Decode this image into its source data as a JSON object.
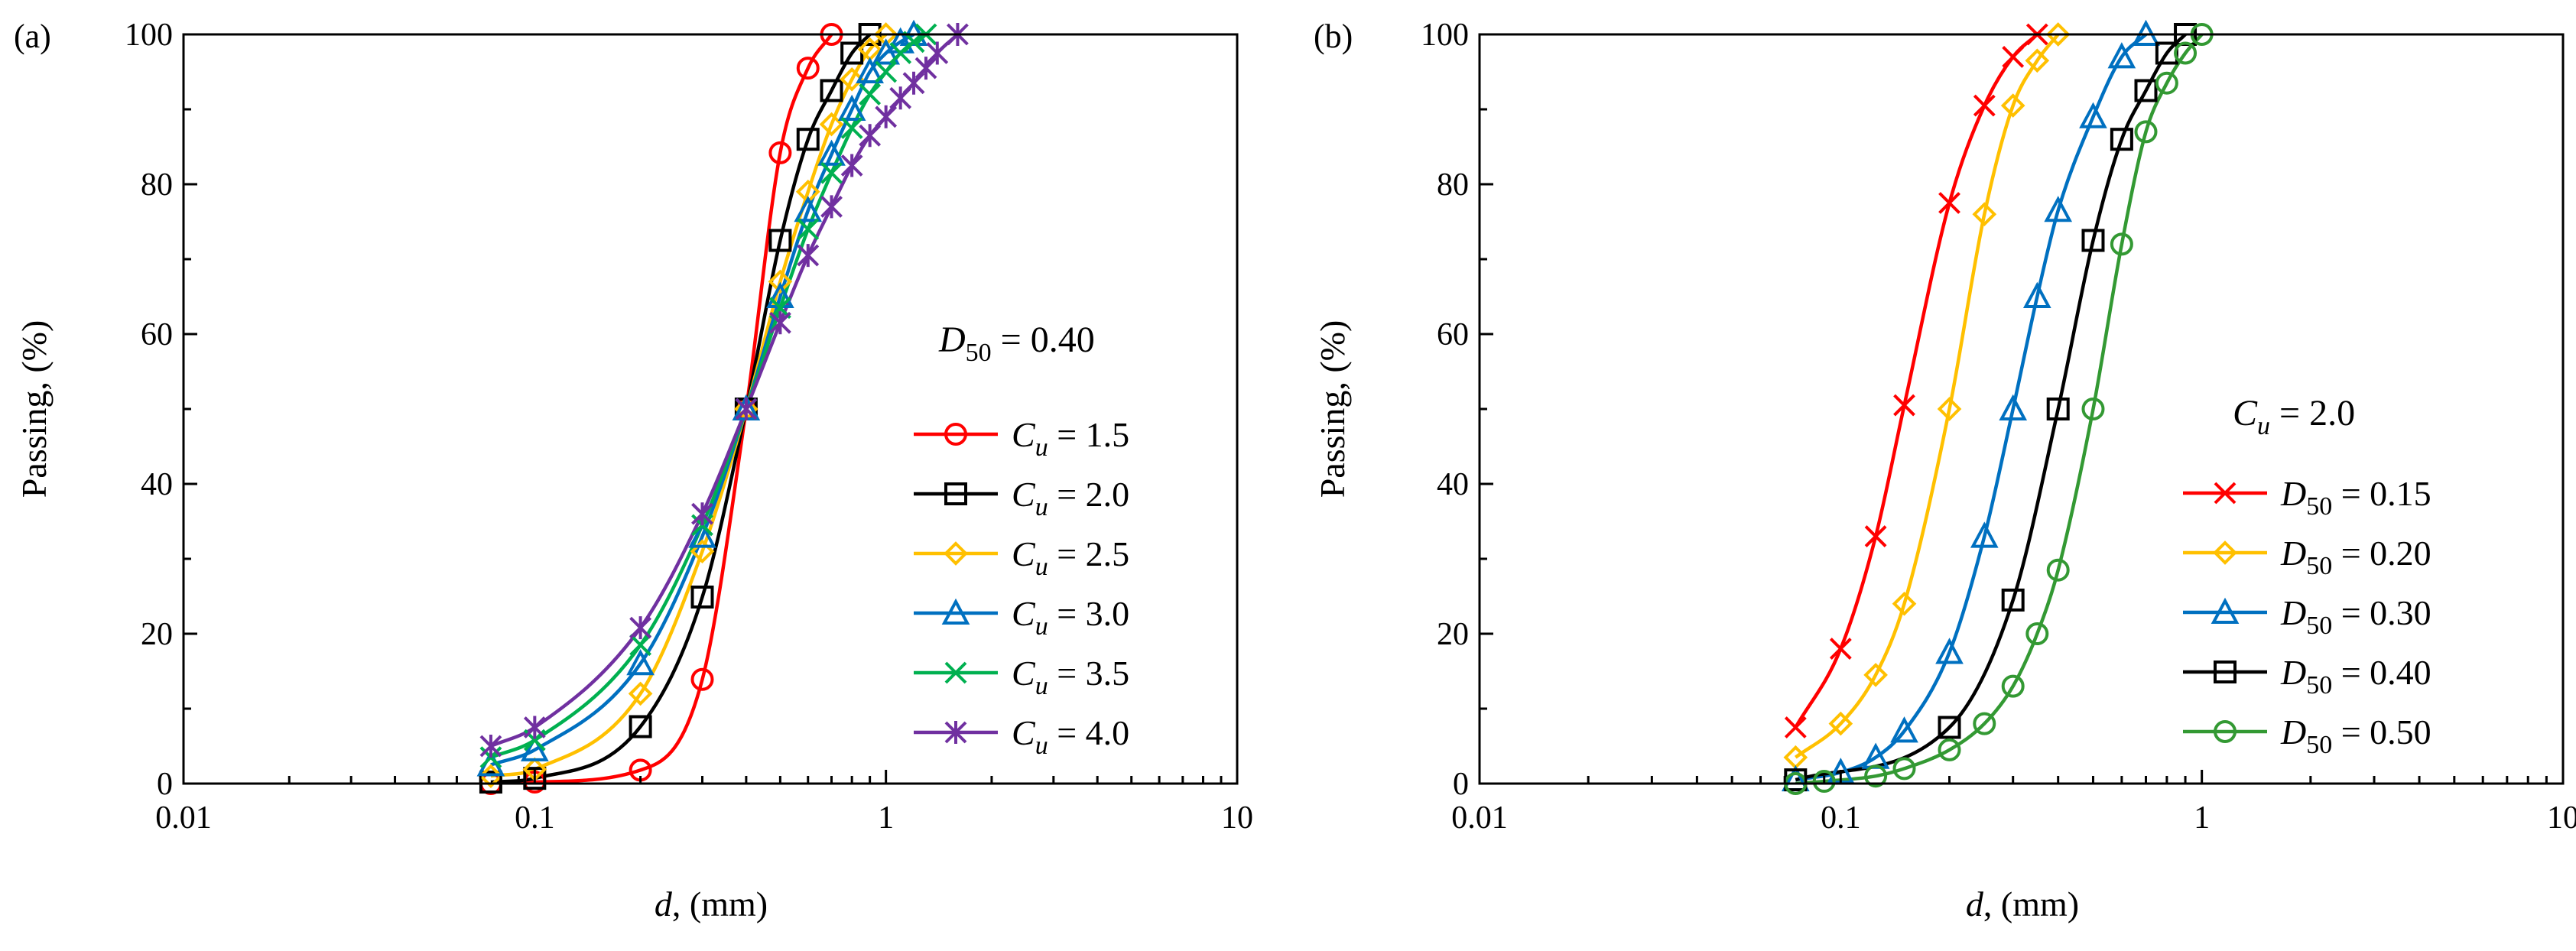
{
  "chart_data": [
    {
      "type": "line",
      "panel": "(a)",
      "xscale": "log",
      "xlim": [
        0.01,
        10
      ],
      "ylim": [
        0,
        100
      ],
      "xticks": [
        0.01,
        0.1,
        1,
        10
      ],
      "xtick_labels": [
        "0.01",
        "0.1",
        "1",
        "10"
      ],
      "yticks": [
        0,
        20,
        40,
        60,
        80,
        100
      ],
      "ytick_labels": [
        "0",
        "20",
        "40",
        "60",
        "80",
        "100"
      ],
      "xlabel": {
        "var": "d",
        "rest": ", (mm)"
      },
      "ylabel": "Passing, (%)",
      "annotation": {
        "var": "D",
        "sub": "50",
        "rest": " = 0.40"
      },
      "series": [
        {
          "name": "Cu = 1.5",
          "sym": "C",
          "sub": "u",
          "value": " = 1.5",
          "color": "#ff0000",
          "marker": "circle",
          "x": [
            0.075,
            0.1,
            0.2,
            0.3,
            0.4,
            0.5,
            0.6,
            0.7
          ],
          "y": [
            0,
            0.2,
            1.8,
            13.9,
            50,
            84.2,
            95.5,
            100
          ]
        },
        {
          "name": "Cu = 2.0",
          "sym": "C",
          "sub": "u",
          "value": " = 2.0",
          "color": "#000000",
          "marker": "square",
          "x": [
            0.075,
            0.1,
            0.2,
            0.3,
            0.4,
            0.5,
            0.6,
            0.7,
            0.8,
            0.9
          ],
          "y": [
            0.2,
            0.7,
            7.6,
            24.9,
            50,
            72.5,
            86,
            92.5,
            97.5,
            100
          ]
        },
        {
          "name": "Cu = 2.5",
          "sym": "C",
          "sub": "u",
          "value": " = 2.5",
          "color": "#ffc000",
          "marker": "diamond",
          "x": [
            0.075,
            0.1,
            0.2,
            0.3,
            0.4,
            0.5,
            0.6,
            0.7,
            0.8,
            0.9,
            1.0
          ],
          "y": [
            1.0,
            1.9,
            12,
            31,
            50,
            67,
            79,
            88,
            94,
            98,
            100
          ]
        },
        {
          "name": "Cu = 3.0",
          "sym": "C",
          "sub": "u",
          "value": " = 3.0",
          "color": "#0070c0",
          "marker": "triangle",
          "x": [
            0.075,
            0.1,
            0.2,
            0.3,
            0.4,
            0.5,
            0.6,
            0.7,
            0.8,
            0.9,
            1.0,
            1.1,
            1.2
          ],
          "y": [
            2.5,
            4.5,
            16,
            33,
            50,
            65,
            76.5,
            84,
            90,
            95,
            97.5,
            99,
            100
          ]
        },
        {
          "name": "Cu = 3.5",
          "sym": "C",
          "sub": "u",
          "value": " = 3.5",
          "color": "#00b050",
          "marker": "x",
          "x": [
            0.075,
            0.1,
            0.2,
            0.3,
            0.4,
            0.5,
            0.6,
            0.7,
            0.8,
            0.9,
            1.0,
            1.1,
            1.2,
            1.3
          ],
          "y": [
            3.5,
            5.8,
            18.5,
            34.5,
            50,
            63.5,
            74,
            81.5,
            87.5,
            92,
            95,
            97.5,
            99,
            100
          ]
        },
        {
          "name": "Cu = 4.0",
          "sym": "C",
          "sub": "u",
          "value": " = 4.0",
          "color": "#7030a0",
          "marker": "asterisk",
          "x": [
            0.075,
            0.1,
            0.2,
            0.3,
            0.4,
            0.5,
            0.6,
            0.7,
            0.8,
            0.9,
            1.0,
            1.1,
            1.2,
            1.3,
            1.4,
            1.6
          ],
          "y": [
            5,
            7.5,
            20.8,
            36,
            50,
            61.5,
            70.5,
            77,
            82.5,
            86.5,
            89,
            91.5,
            93.5,
            95.5,
            97.5,
            100
          ]
        }
      ]
    },
    {
      "type": "line",
      "panel": "(b)",
      "xscale": "log",
      "xlim": [
        0.01,
        10
      ],
      "ylim": [
        0,
        100
      ],
      "xticks": [
        0.01,
        0.1,
        1,
        10
      ],
      "xtick_labels": [
        "0.01",
        "0.1",
        "1",
        "10"
      ],
      "yticks": [
        0,
        20,
        40,
        60,
        80,
        100
      ],
      "ytick_labels": [
        "0",
        "20",
        "40",
        "60",
        "80",
        "100"
      ],
      "xlabel": {
        "var": "d",
        "rest": ", (mm)"
      },
      "ylabel": "Passing, (%)",
      "annotation": {
        "var": "C",
        "sub": "u",
        "rest": " = 2.0"
      },
      "series": [
        {
          "name": "D50 = 0.15",
          "sym": "D",
          "sub": "50",
          "value": " = 0.15",
          "color": "#ff0000",
          "marker": "x",
          "x": [
            0.075,
            0.1,
            0.125,
            0.15,
            0.2,
            0.25,
            0.3,
            0.35
          ],
          "y": [
            7.5,
            18,
            33,
            50.5,
            77.5,
            90.5,
            97,
            100
          ]
        },
        {
          "name": "D50 = 0.20",
          "sym": "D",
          "sub": "50",
          "value": " = 0.20",
          "color": "#ffc000",
          "marker": "diamond",
          "x": [
            0.075,
            0.1,
            0.125,
            0.15,
            0.2,
            0.25,
            0.3,
            0.35,
            0.4
          ],
          "y": [
            3.5,
            8,
            14.5,
            24,
            50,
            76,
            90.5,
            96.5,
            100
          ]
        },
        {
          "name": "D50 = 0.30",
          "sym": "D",
          "sub": "50",
          "value": " = 0.30",
          "color": "#0070c0",
          "marker": "triangle",
          "x": [
            0.075,
            0.1,
            0.125,
            0.15,
            0.2,
            0.25,
            0.3,
            0.35,
            0.4,
            0.5,
            0.6,
            0.7
          ],
          "y": [
            0.5,
            1.5,
            3.5,
            7,
            17.5,
            33,
            50,
            65,
            76.5,
            89,
            97,
            100
          ]
        },
        {
          "name": "D50 = 0.40",
          "sym": "D",
          "sub": "50",
          "value": " = 0.40",
          "color": "#000000",
          "marker": "square",
          "x": [
            0.075,
            0.2,
            0.3,
            0.4,
            0.5,
            0.6,
            0.7,
            0.8,
            0.9
          ],
          "y": [
            0.5,
            7.5,
            24.5,
            50,
            72.5,
            86,
            92.5,
            97.5,
            100
          ]
        },
        {
          "name": "D50 = 0.50",
          "sym": "D",
          "sub": "50",
          "value": " = 0.50",
          "color": "#339933",
          "marker": "circle",
          "x": [
            0.075,
            0.09,
            0.125,
            0.15,
            0.2,
            0.25,
            0.3,
            0.35,
            0.4,
            0.5,
            0.6,
            0.7,
            0.8,
            0.9,
            1.0
          ],
          "y": [
            0,
            0.3,
            1,
            2,
            4.5,
            8,
            13,
            20,
            28.5,
            50,
            72,
            87,
            93.5,
            97.5,
            100
          ]
        }
      ]
    }
  ]
}
